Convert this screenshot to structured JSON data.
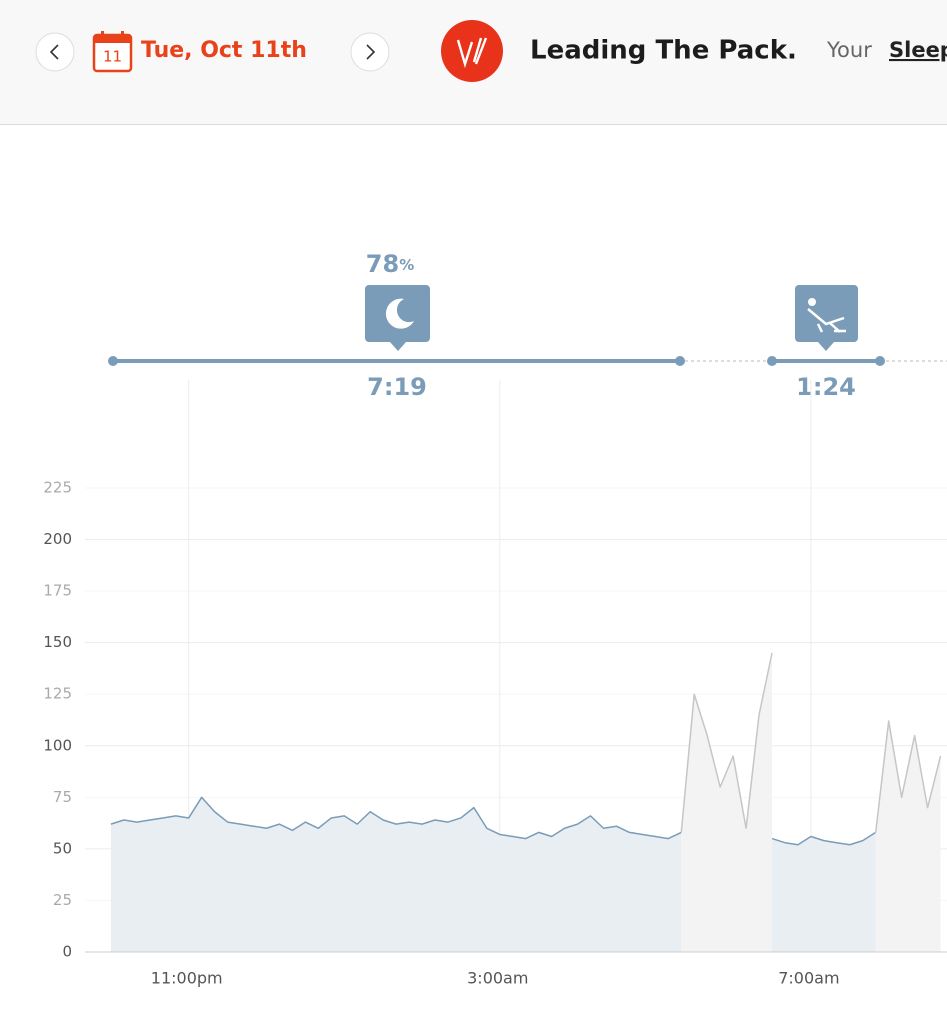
{
  "header": {
    "calendar_day": "11",
    "date": "Tue, Oct 11th",
    "title": "Leading The Pack.",
    "subtitle_prefix": "Your",
    "subtitle_link": "Sleep"
  },
  "sleep_summary": {
    "performance": "78",
    "performance_unit": "%",
    "sleep_duration": "7:19",
    "nap_duration": "1:24"
  },
  "chart_data": {
    "type": "line",
    "x": [
      "10:00pm",
      "10:10pm",
      "10:20pm",
      "10:30pm",
      "10:40pm",
      "10:50pm",
      "11:00pm",
      "11:10pm",
      "11:20pm",
      "11:30pm",
      "11:40pm",
      "11:50pm",
      "12:00am",
      "12:10am",
      "12:20am",
      "12:30am",
      "12:40am",
      "12:50am",
      "1:00am",
      "1:10am",
      "1:20am",
      "1:30am",
      "1:40am",
      "1:50am",
      "2:00am",
      "2:10am",
      "2:20am",
      "2:30am",
      "2:40am",
      "2:50am",
      "3:00am",
      "3:10am",
      "3:20am",
      "3:30am",
      "3:40am",
      "3:50am",
      "4:00am",
      "4:10am",
      "4:20am",
      "4:30am",
      "4:40am",
      "4:50am",
      "5:00am",
      "5:10am",
      "5:20am",
      "5:30am",
      "5:40am",
      "5:50am",
      "6:00am",
      "6:10am",
      "6:20am",
      "6:30am",
      "6:40am",
      "6:50am",
      "7:00am",
      "7:10am",
      "7:20am",
      "7:30am",
      "7:40am",
      "7:50am",
      "8:00am",
      "8:10am",
      "8:20am",
      "8:30am",
      "8:40am"
    ],
    "series": [
      {
        "color": "#7a9cb8",
        "fill": "#e9eef3",
        "values": [
          62,
          64,
          63,
          64,
          65,
          66,
          65,
          75,
          68,
          63,
          62,
          61,
          60,
          62,
          59,
          63,
          60,
          65,
          66,
          62,
          68,
          64,
          62,
          63,
          62,
          64,
          63,
          65,
          70,
          60,
          57,
          56,
          55,
          58,
          56,
          60,
          62,
          66,
          60,
          61,
          58,
          57,
          56,
          55,
          58,
          null,
          null,
          null,
          null,
          null,
          null,
          55,
          53,
          52,
          56,
          54,
          53,
          52,
          54,
          58,
          null,
          null,
          null,
          null,
          null
        ]
      },
      {
        "color": "#c6c6c6",
        "fill": "#f3f3f3",
        "values": [
          null,
          null,
          null,
          null,
          null,
          null,
          null,
          null,
          null,
          null,
          null,
          null,
          null,
          null,
          null,
          null,
          null,
          null,
          null,
          null,
          null,
          null,
          null,
          null,
          null,
          null,
          null,
          null,
          null,
          null,
          null,
          null,
          null,
          null,
          null,
          null,
          null,
          null,
          null,
          null,
          null,
          null,
          null,
          null,
          58,
          125,
          105,
          80,
          95,
          60,
          115,
          145,
          null,
          null,
          null,
          null,
          null,
          null,
          null,
          58,
          112,
          75,
          105,
          70,
          95
        ]
      }
    ],
    "xlim": [
      "9:40pm",
      "8:45am"
    ],
    "xticks": [
      "11:00pm",
      "3:00am",
      "7:00am"
    ],
    "ylim": [
      0,
      225
    ],
    "yticks": [
      0,
      25,
      50,
      75,
      100,
      125,
      150,
      175,
      200,
      225
    ],
    "grid": true
  }
}
